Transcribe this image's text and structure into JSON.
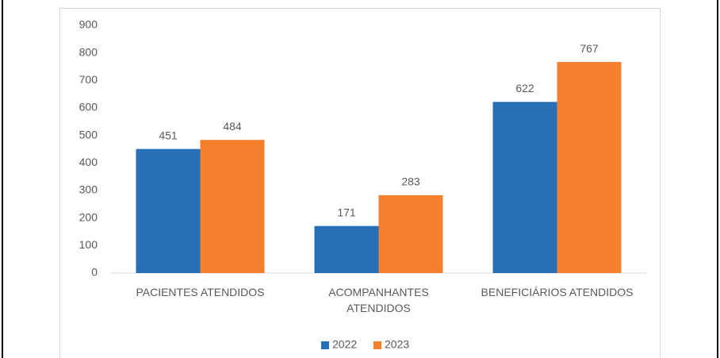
{
  "chart_data": {
    "type": "bar",
    "categories": [
      "PACIENTES ATENDIDOS",
      "ACOMPANHANTES ATENDIDOS",
      "BENEFICIÁRIOS ATENDIDOS"
    ],
    "series": [
      {
        "name": "2022",
        "color": "#2770b8",
        "values": [
          451,
          171,
          622
        ]
      },
      {
        "name": "2023",
        "color": "#f47f2c",
        "values": [
          484,
          283,
          767
        ]
      }
    ],
    "ylim": [
      0,
      900
    ],
    "yticks": [
      0,
      100,
      200,
      300,
      400,
      500,
      600,
      700,
      800,
      900
    ],
    "grid": false,
    "legend": "bottom"
  }
}
